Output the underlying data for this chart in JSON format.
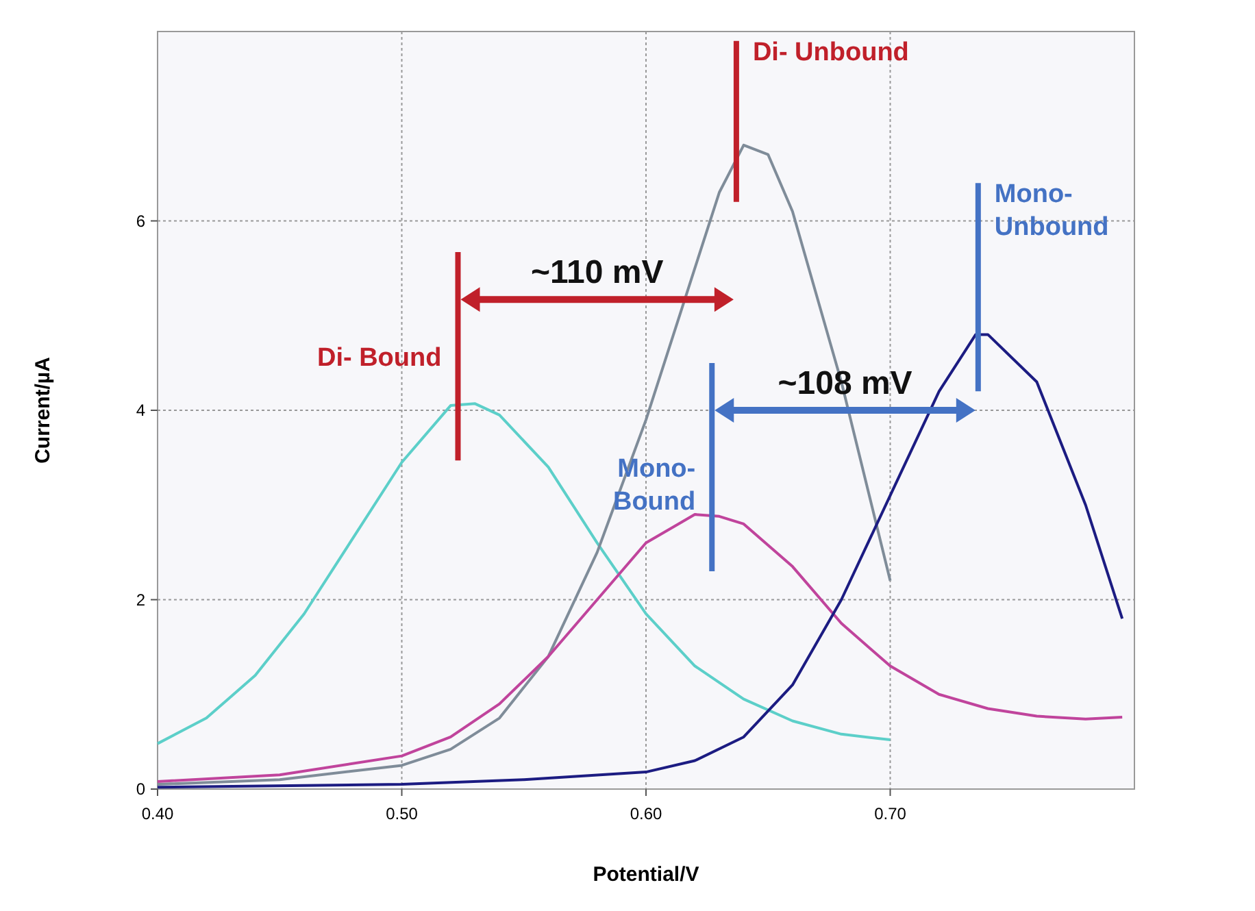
{
  "chart_data": {
    "type": "line",
    "xlabel": "Potential/V",
    "ylabel": "Current/µA",
    "xlim": [
      0.4,
      0.8
    ],
    "ylim": [
      0,
      8
    ],
    "xticks": [
      {
        "value": 0.4,
        "label": "0.40"
      },
      {
        "value": 0.5,
        "label": "0.50"
      },
      {
        "value": 0.6,
        "label": "0.60"
      },
      {
        "value": 0.7,
        "label": "0.70"
      }
    ],
    "yticks": [
      0,
      2,
      4,
      6
    ],
    "grid": true,
    "marker": "none",
    "line_style": "solid",
    "series": [
      {
        "color": "#5ccfc9",
        "x": [
          0.4,
          0.42,
          0.44,
          0.46,
          0.48,
          0.5,
          0.52,
          0.53,
          0.54,
          0.56,
          0.58,
          0.6,
          0.62,
          0.64,
          0.66,
          0.68,
          0.7
        ],
        "values": [
          0.48,
          0.75,
          1.2,
          1.85,
          2.65,
          3.45,
          4.05,
          4.07,
          3.95,
          3.4,
          2.6,
          1.85,
          1.3,
          0.95,
          0.72,
          0.58,
          0.52
        ]
      },
      {
        "color": "#7f8c99",
        "x": [
          0.4,
          0.45,
          0.5,
          0.52,
          0.54,
          0.56,
          0.58,
          0.6,
          0.62,
          0.63,
          0.64,
          0.65,
          0.66,
          0.68,
          0.7
        ],
        "values": [
          0.05,
          0.1,
          0.25,
          0.42,
          0.75,
          1.4,
          2.5,
          3.9,
          5.5,
          6.3,
          6.8,
          6.7,
          6.1,
          4.3,
          2.2
        ]
      },
      {
        "color": "#c0449c",
        "x": [
          0.4,
          0.45,
          0.5,
          0.52,
          0.54,
          0.56,
          0.58,
          0.6,
          0.62,
          0.63,
          0.64,
          0.66,
          0.68,
          0.7,
          0.72,
          0.74,
          0.76,
          0.78,
          0.795
        ],
        "values": [
          0.08,
          0.15,
          0.35,
          0.55,
          0.9,
          1.4,
          2.0,
          2.6,
          2.9,
          2.88,
          2.8,
          2.35,
          1.75,
          1.3,
          1.0,
          0.85,
          0.77,
          0.74,
          0.76
        ]
      },
      {
        "color": "#1c1c82",
        "x": [
          0.4,
          0.5,
          0.55,
          0.6,
          0.62,
          0.64,
          0.66,
          0.68,
          0.7,
          0.72,
          0.735,
          0.74,
          0.76,
          0.78,
          0.795
        ],
        "values": [
          0.02,
          0.05,
          0.1,
          0.18,
          0.3,
          0.55,
          1.1,
          2.0,
          3.1,
          4.2,
          4.8,
          4.8,
          4.3,
          3.0,
          1.8
        ]
      }
    ],
    "ref_lines": [
      {
        "axis": "x",
        "value": 0.523,
        "label": "Di- Bound",
        "color": "#c0202a"
      },
      {
        "axis": "x",
        "value": 0.637,
        "label": "Di- Unbound",
        "color": "#c0202a"
      },
      {
        "axis": "x",
        "value": 0.627,
        "label": "Mono-\nBound",
        "color": "#4472c4"
      },
      {
        "axis": "x",
        "value": 0.736,
        "label": "Mono-\nUnbound",
        "color": "#4472c4"
      }
    ],
    "annotations": [
      "~110 mV",
      "~108 mV"
    ]
  }
}
